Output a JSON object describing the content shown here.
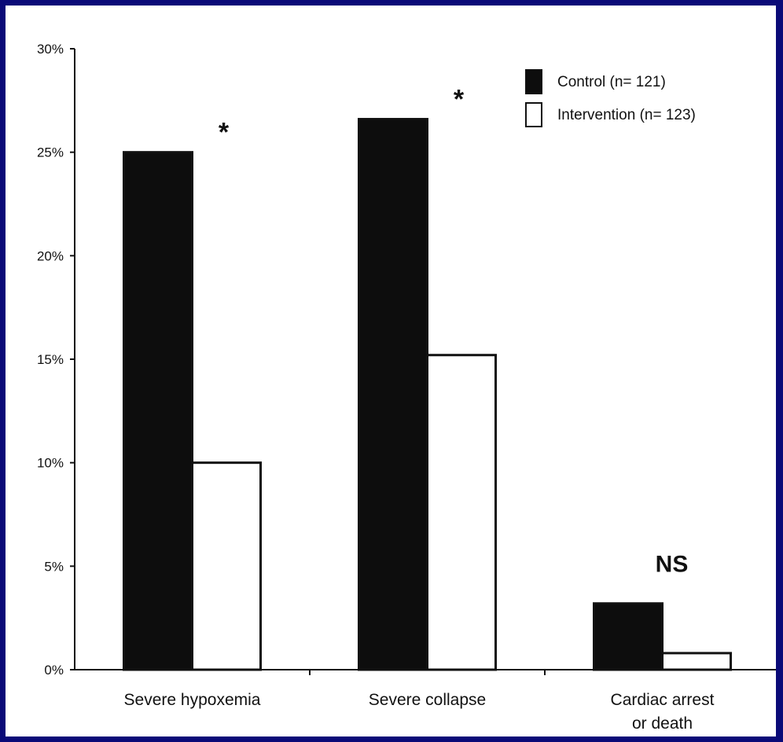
{
  "chart_data": {
    "type": "bar",
    "categories": [
      [
        "Severe hypoxemia"
      ],
      [
        "Severe collapse"
      ],
      [
        "Cardiac arrest",
        "or death"
      ]
    ],
    "series": [
      {
        "name": "Control (n= 121)",
        "values": [
          25.0,
          26.6,
          3.2
        ],
        "color": "#0d0d0d"
      },
      {
        "name": "Intervention (n= 123)",
        "values": [
          10.0,
          15.2,
          0.8
        ],
        "color": "#ffffff"
      }
    ],
    "annotations": [
      "*",
      "*",
      "NS"
    ],
    "y_ticks": [
      "0%",
      "5%",
      "10%",
      "15%",
      "20%",
      "25%",
      "30%"
    ],
    "ylim": [
      0,
      30
    ],
    "title": "",
    "xlabel": "",
    "ylabel": "",
    "grid": false,
    "legend_position": "top-right"
  }
}
